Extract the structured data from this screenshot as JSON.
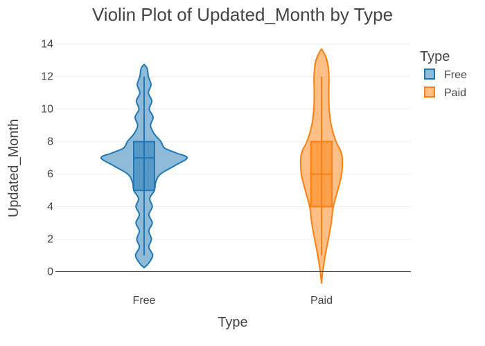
{
  "chart_data": {
    "type": "violin",
    "title": "Violin Plot of Updated_Month by Type",
    "xlabel": "Type",
    "ylabel": "Updated_Month",
    "categories": [
      "Free",
      "Paid"
    ],
    "ylim": [
      -0.7,
      14.5
    ],
    "yticks": [
      0,
      2,
      4,
      6,
      8,
      10,
      12,
      14
    ],
    "grid": true,
    "legend": {
      "title": "Type",
      "placement": "top-right"
    },
    "series": [
      {
        "name": "Free",
        "color": "#1f77b4",
        "min": 1,
        "q1": 5,
        "median": 7,
        "q3": 8,
        "max": 12,
        "kde_range": [
          0.25,
          12.75
        ],
        "density": [
          [
            0.25,
            0.0
          ],
          [
            0.5,
            0.1
          ],
          [
            1.0,
            0.2
          ],
          [
            1.5,
            0.11
          ],
          [
            2.0,
            0.17
          ],
          [
            2.5,
            0.11
          ],
          [
            3.0,
            0.19
          ],
          [
            3.5,
            0.11
          ],
          [
            4.0,
            0.19
          ],
          [
            4.5,
            0.13
          ],
          [
            5.0,
            0.24
          ],
          [
            5.5,
            0.27
          ],
          [
            6.0,
            0.38
          ],
          [
            6.5,
            0.7
          ],
          [
            7.0,
            1.0
          ],
          [
            7.3,
            0.75
          ],
          [
            7.6,
            0.48
          ],
          [
            8.0,
            0.39
          ],
          [
            8.5,
            0.23
          ],
          [
            9.0,
            0.15
          ],
          [
            9.5,
            0.21
          ],
          [
            10.0,
            0.12
          ],
          [
            10.5,
            0.18
          ],
          [
            11.0,
            0.1
          ],
          [
            11.5,
            0.16
          ],
          [
            12.0,
            0.1
          ],
          [
            12.5,
            0.07
          ],
          [
            12.75,
            0.0
          ]
        ]
      },
      {
        "name": "Paid",
        "color": "#ff7f0e",
        "min": 1,
        "q1": 4,
        "median": 6,
        "q3": 8,
        "max": 12,
        "kde_range": [
          -0.7,
          13.7
        ],
        "density": [
          [
            -0.7,
            0.0
          ],
          [
            0.0,
            0.06
          ],
          [
            1.0,
            0.18
          ],
          [
            2.0,
            0.33
          ],
          [
            3.0,
            0.47
          ],
          [
            4.0,
            0.57
          ],
          [
            5.0,
            0.78
          ],
          [
            6.0,
            0.97
          ],
          [
            7.0,
            1.0
          ],
          [
            7.5,
            0.9
          ],
          [
            8.0,
            0.7
          ],
          [
            9.0,
            0.47
          ],
          [
            10.0,
            0.37
          ],
          [
            11.0,
            0.35
          ],
          [
            12.0,
            0.36
          ],
          [
            12.8,
            0.3
          ],
          [
            13.3,
            0.18
          ],
          [
            13.7,
            0.0
          ]
        ]
      }
    ]
  }
}
